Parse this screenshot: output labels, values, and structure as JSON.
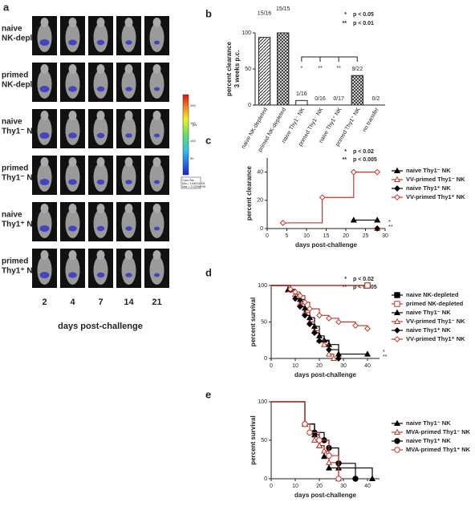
{
  "panel_a": {
    "letter": "a",
    "rows": [
      [
        "naive",
        "NK-depleted"
      ],
      [
        "primed",
        "NK-depleted"
      ],
      [
        "naive",
        "Thy1⁻ NK"
      ],
      [
        "primed",
        "Thy1⁻ NK"
      ],
      [
        "naive",
        "Thy1⁺ NK"
      ],
      [
        "primed",
        "Thy1⁺ NK"
      ]
    ],
    "columns": [
      2,
      4,
      7,
      14,
      21
    ],
    "x_label": "days post-challenge",
    "colorbar_ticks": [
      200,
      150,
      100,
      50
    ],
    "colorbar_unit": "p/s",
    "colorbar_legend": [
      "Color Bar",
      "Min = 4.6467e+05",
      "Max = 2.2209e+06"
    ]
  },
  "chart_data": [
    {
      "type": "bar",
      "letter": "b",
      "y_label": [
        "percent clearance",
        "3 weeks p.c."
      ],
      "categories": [
        "naive NK-depleted",
        "primed NK-depleted",
        "naive Thy1⁻ NK",
        "primed Thy1⁻ NK",
        "naive Thy1⁺ NK",
        "primed Thy1⁺ NK",
        "no transfer"
      ],
      "values": [
        93.75,
        100,
        6.25,
        0,
        0,
        40.9,
        0
      ],
      "value_labels": [
        "15/16",
        "15/15",
        "1/16",
        "0/16",
        "0/17",
        "9/22",
        "0/2"
      ],
      "fills": [
        "hatch",
        "cross",
        "white",
        "white",
        "white",
        "cross",
        "white"
      ],
      "ylim": [
        0,
        100
      ],
      "yticks": [
        0,
        50,
        100
      ],
      "significance_marks": [
        "*",
        "**",
        "**"
      ],
      "significance_legend": [
        {
          "symbol": "*",
          "text": "p < 0.05"
        },
        {
          "symbol": "**",
          "text": "p < 0.01"
        }
      ]
    },
    {
      "type": "step",
      "letter": "c",
      "y_label": [
        "percent clearance"
      ],
      "x_label": "days post-challenge",
      "xlim": [
        0,
        30
      ],
      "xticks": [
        0,
        5,
        10,
        15,
        20,
        25,
        30
      ],
      "ylim": [
        0,
        50
      ],
      "yticks": [
        0,
        20,
        40
      ],
      "series": [
        {
          "name": "naive Thy1⁻ NK",
          "color": "#000000",
          "marker": "triangle",
          "filled": true,
          "x": [
            22,
            28
          ],
          "values": [
            6,
            6
          ]
        },
        {
          "name": "VV-primed Thy1⁻ NK",
          "color": "#c0392b",
          "marker": "triangle",
          "filled": false,
          "x": [
            28
          ],
          "values": [
            0
          ]
        },
        {
          "name": "naive Thy1⁺ NK",
          "color": "#000000",
          "marker": "diamond",
          "filled": true,
          "x": [
            28
          ],
          "values": [
            0
          ]
        },
        {
          "name": "VV-primed Thy1⁺ NK",
          "color": "#c0392b",
          "marker": "diamond",
          "filled": false,
          "x": [
            4,
            14,
            22,
            28
          ],
          "values": [
            4,
            22,
            40,
            40
          ]
        }
      ],
      "significance_marks": [
        "*",
        "**"
      ],
      "significance_legend": [
        {
          "symbol": "*",
          "text": "p < 0.02"
        },
        {
          "symbol": "**",
          "text": "p < 0.005"
        }
      ]
    },
    {
      "type": "survival",
      "letter": "d",
      "y_label": [
        "percent survival"
      ],
      "x_label": "days post-challenge",
      "xlim": [
        0,
        45
      ],
      "xticks": [
        0,
        10,
        20,
        30,
        40
      ],
      "ylim": [
        0,
        100
      ],
      "yticks": [
        0,
        50,
        100
      ],
      "series": [
        {
          "name": "naive NK-depleted",
          "color": "#000000",
          "marker": "square",
          "filled": true,
          "x": [
            40
          ],
          "values": [
            100
          ]
        },
        {
          "name": "primed NK-depleted",
          "color": "#c0392b",
          "marker": "square",
          "filled": false,
          "x": [
            40
          ],
          "values": [
            100
          ]
        },
        {
          "name": "naive Thy1⁻ NK",
          "color": "#000000",
          "marker": "triangle",
          "filled": true,
          "x": [
            7,
            10,
            12,
            14,
            16,
            18,
            20,
            22,
            24,
            28,
            40
          ],
          "values": [
            94,
            88,
            81,
            69,
            56,
            44,
            31,
            25,
            19,
            6,
            6
          ]
        },
        {
          "name": "VV-primed Thy1⁻ NK",
          "color": "#c0392b",
          "marker": "triangle",
          "filled": false,
          "x": [
            8,
            10,
            12,
            14,
            16,
            18,
            20,
            22,
            24,
            26
          ],
          "values": [
            94,
            88,
            75,
            63,
            50,
            38,
            25,
            19,
            6,
            0
          ]
        },
        {
          "name": "naive Thy1⁺ NK",
          "color": "#000000",
          "marker": "diamond",
          "filled": true,
          "x": [
            8,
            10,
            12,
            14,
            16,
            18,
            20,
            24,
            28
          ],
          "values": [
            94,
            82,
            71,
            59,
            47,
            35,
            24,
            12,
            0
          ]
        },
        {
          "name": "VV-primed Thy1⁺ NK",
          "color": "#c0392b",
          "marker": "diamond",
          "filled": false,
          "x": [
            8,
            10,
            12,
            14,
            16,
            20,
            24,
            28,
            35,
            40
          ],
          "values": [
            95,
            91,
            86,
            77,
            68,
            59,
            55,
            50,
            45,
            41
          ]
        }
      ],
      "significance_marks": [
        "*",
        "**"
      ],
      "significance_legend": [
        {
          "symbol": "*",
          "text": "p < 0.02"
        },
        {
          "symbol": "**",
          "text": "p < 0.005"
        }
      ]
    },
    {
      "type": "survival",
      "letter": "e",
      "y_label": [
        "percent survival"
      ],
      "x_label": "days post-challenge",
      "xlim": [
        0,
        45
      ],
      "xticks": [
        0,
        10,
        20,
        30,
        40
      ],
      "ylim": [
        0,
        100
      ],
      "yticks": [
        0,
        50,
        100
      ],
      "series": [
        {
          "name": "naive Thy1⁻ NK",
          "color": "#000000",
          "marker": "triangle",
          "filled": true,
          "x": [
            14,
            18,
            20,
            22,
            24,
            28,
            42
          ],
          "values": [
            71,
            57,
            43,
            29,
            14,
            14,
            0
          ]
        },
        {
          "name": "MVA-primed Thy1⁻ NK",
          "color": "#c0392b",
          "marker": "triangle",
          "filled": false,
          "x": [
            14,
            18,
            20,
            22,
            24,
            28
          ],
          "values": [
            71,
            50,
            43,
            36,
            21,
            0
          ]
        },
        {
          "name": "naive Thy1⁺ NK",
          "color": "#000000",
          "marker": "circle",
          "filled": true,
          "x": [
            14,
            18,
            22,
            24,
            28,
            35
          ],
          "values": [
            71,
            60,
            50,
            40,
            20,
            0
          ]
        },
        {
          "name": "MVA-primed Thy1⁺ NK",
          "color": "#c0392b",
          "marker": "circle",
          "filled": false,
          "x": [
            14,
            16,
            20,
            24,
            28
          ],
          "values": [
            71,
            60,
            50,
            30,
            0
          ]
        }
      ]
    }
  ]
}
